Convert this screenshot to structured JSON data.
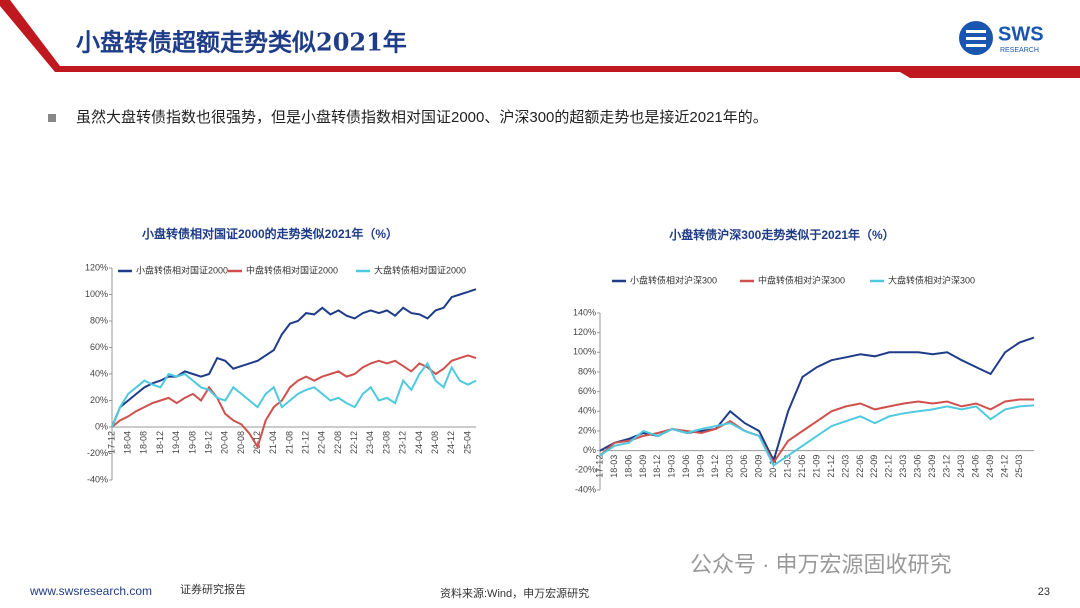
{
  "header": {
    "title": "小盘转债超额走势类似2021年",
    "logo": "SWS",
    "logo_sub": "RESEARCH"
  },
  "bullet": "虽然大盘转债指数也很强势，但是小盘转债指数相对国证2000、沪深300的超额走势也是接近2021年的。",
  "chart_data": [
    {
      "type": "line",
      "title": "小盘转债相对国证2000的走势类似2021年（%）",
      "categories": [
        "17-12",
        null,
        "18-04",
        null,
        "18-08",
        null,
        "18-12",
        null,
        "19-04",
        null,
        "19-08",
        null,
        "19-12",
        null,
        "20-04",
        null,
        "20-08",
        null,
        "20-12",
        null,
        "21-04",
        null,
        "21-08",
        null,
        "21-12",
        null,
        "22-04",
        null,
        "22-08",
        null,
        "22-12",
        null,
        "23-04",
        null,
        "23-08",
        null,
        "23-12",
        null,
        "24-04",
        null,
        "24-08",
        null,
        "24-12",
        null,
        "25-04",
        null
      ],
      "series": [
        {
          "name": "小盘转债相对国证2000",
          "color": "#1f3c88",
          "values": [
            0,
            15,
            20,
            25,
            30,
            33,
            35,
            38,
            38,
            42,
            40,
            38,
            40,
            52,
            50,
            44,
            46,
            48,
            50,
            54,
            58,
            70,
            78,
            80,
            86,
            85,
            90,
            85,
            88,
            84,
            82,
            86,
            88,
            86,
            88,
            84,
            90,
            86,
            85,
            82,
            88,
            90,
            98,
            100,
            102,
            104
          ]
        },
        {
          "name": "中盘转债相对国证2000",
          "color": "#d0504d",
          "values": [
            0,
            5,
            8,
            12,
            15,
            18,
            20,
            22,
            18,
            22,
            25,
            20,
            30,
            22,
            10,
            5,
            2,
            -5,
            -15,
            5,
            15,
            20,
            30,
            35,
            38,
            35,
            38,
            40,
            42,
            38,
            40,
            45,
            48,
            50,
            48,
            50,
            46,
            42,
            48,
            45,
            40,
            44,
            50,
            52,
            54,
            52
          ]
        },
        {
          "name": "大盘转债相对国证2000",
          "color": "#4fc9df",
          "values": [
            0,
            15,
            25,
            30,
            35,
            32,
            30,
            40,
            38,
            40,
            35,
            30,
            28,
            22,
            20,
            30,
            25,
            20,
            15,
            25,
            30,
            15,
            20,
            25,
            28,
            30,
            25,
            20,
            22,
            18,
            15,
            25,
            30,
            20,
            22,
            18,
            35,
            28,
            40,
            48,
            35,
            30,
            45,
            35,
            32,
            35
          ]
        }
      ],
      "ylim": [
        -40,
        120
      ],
      "yticks": [
        {
          "value": -40,
          "label": "-40%"
        },
        {
          "value": -20,
          "label": "-20%"
        },
        {
          "value": 0,
          "label": "0%"
        },
        {
          "value": 20,
          "label": "20%"
        },
        {
          "value": 40,
          "label": "40%"
        },
        {
          "value": 60,
          "label": "60%"
        },
        {
          "value": 80,
          "label": "80%"
        },
        {
          "value": 100,
          "label": "100%"
        },
        {
          "value": 120,
          "label": "120%"
        }
      ],
      "grid": false
    },
    {
      "type": "line",
      "title": "小盘转债沪深300走势类似于2021年（%）",
      "categories": [
        "17-12",
        "18-03",
        "18-06",
        "18-09",
        "18-12",
        "19-03",
        "19-06",
        "19-09",
        "19-12",
        "20-03",
        "20-06",
        "20-09",
        "20-12",
        "21-03",
        "21-06",
        "21-09",
        "21-12",
        "22-03",
        "22-06",
        "22-09",
        "22-12",
        "23-03",
        "23-06",
        "23-09",
        "23-12",
        "24-03",
        "24-06",
        "24-09",
        "24-12",
        "25-03",
        null
      ],
      "series": [
        {
          "name": "小盘转债相对沪深300",
          "color": "#1f3c88",
          "values": [
            0,
            8,
            12,
            18,
            15,
            22,
            18,
            20,
            22,
            40,
            28,
            20,
            -10,
            40,
            75,
            85,
            92,
            95,
            98,
            96,
            100,
            100,
            100,
            98,
            100,
            92,
            85,
            78,
            100,
            110,
            115
          ]
        },
        {
          "name": "中盘转债相对沪深300",
          "color": "#d0504d",
          "values": [
            -5,
            8,
            10,
            15,
            18,
            22,
            20,
            18,
            22,
            30,
            20,
            15,
            -12,
            10,
            20,
            30,
            40,
            45,
            48,
            42,
            45,
            48,
            50,
            48,
            50,
            45,
            48,
            42,
            50,
            52,
            52
          ]
        },
        {
          "name": "大盘转债相对沪深300",
          "color": "#4fc9df",
          "values": [
            -5,
            5,
            8,
            20,
            15,
            22,
            18,
            22,
            25,
            28,
            20,
            15,
            -15,
            -5,
            5,
            15,
            25,
            30,
            35,
            28,
            35,
            38,
            40,
            42,
            45,
            42,
            45,
            32,
            42,
            45,
            46
          ]
        }
      ],
      "ylim": [
        -40,
        140
      ],
      "yticks": [
        {
          "value": -40,
          "label": "-40%"
        },
        {
          "value": -20,
          "label": "-20%"
        },
        {
          "value": 0,
          "label": "0%"
        },
        {
          "value": 20,
          "label": "20%"
        },
        {
          "value": 40,
          "label": "40%"
        },
        {
          "value": 60,
          "label": "60%"
        },
        {
          "value": 80,
          "label": "80%"
        },
        {
          "value": 100,
          "label": "100%"
        },
        {
          "value": 120,
          "label": "120%"
        },
        {
          "value": 140,
          "label": "140%"
        }
      ],
      "grid": false
    }
  ],
  "footer": {
    "url": "www.swsresearch.com",
    "label": "证券研究报告",
    "source": "资料来源:Wind，申万宏源研究",
    "watermark": "公众号 · 申万宏源固收研究",
    "page": "23"
  }
}
